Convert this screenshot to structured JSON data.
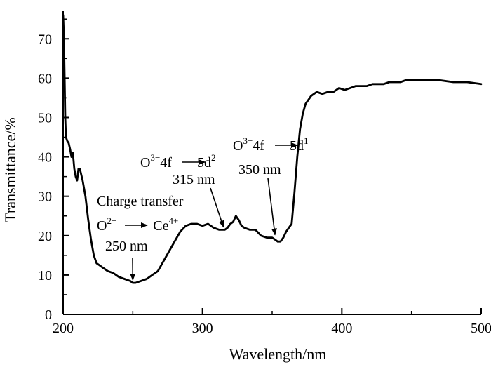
{
  "chart_data": {
    "type": "line",
    "title": "",
    "xlabel": "Wavelength/nm",
    "ylabel": "Transmittance/%",
    "xlim": [
      200,
      500
    ],
    "ylim": [
      0,
      77
    ],
    "x_ticks": [
      "200",
      "300",
      "400",
      "500"
    ],
    "y_ticks": [
      "0",
      "10",
      "20",
      "30",
      "40",
      "50",
      "60",
      "70"
    ],
    "grid": false,
    "series": [
      {
        "x": [
          200,
          200.5,
          201,
          201.5,
          202,
          203,
          204,
          205,
          206,
          207,
          208,
          209,
          210,
          211,
          212,
          214,
          216,
          218,
          220,
          222,
          224,
          226,
          228,
          232,
          236,
          240,
          244,
          248,
          250,
          252,
          256,
          260,
          264,
          268,
          272,
          276,
          280,
          284,
          288,
          292,
          296,
          300,
          304,
          308,
          312,
          316,
          318,
          320,
          322,
          324,
          326,
          328,
          330,
          334,
          338,
          342,
          346,
          350,
          352,
          354,
          356,
          358,
          360,
          362,
          364,
          366,
          368,
          370,
          372,
          374,
          376,
          378,
          382,
          386,
          390,
          394,
          398,
          402,
          406,
          410,
          414,
          418,
          422,
          426,
          430,
          434,
          438,
          442,
          446,
          450,
          455,
          460,
          470,
          480,
          490,
          500
        ],
        "y": [
          76,
          71,
          61,
          50,
          45,
          44,
          43.5,
          42,
          40,
          41,
          37,
          35,
          34,
          37,
          37,
          34,
          30,
          24,
          19,
          15,
          13,
          12.5,
          12,
          11,
          10.5,
          9.5,
          9,
          8.5,
          8,
          8,
          8.5,
          9,
          10,
          11,
          13.5,
          16,
          18.5,
          21,
          22.5,
          23,
          23,
          22.5,
          23,
          22,
          21.5,
          21.5,
          22,
          23,
          23.5,
          25,
          24,
          22.5,
          22,
          21.5,
          21.5,
          20,
          19.5,
          19.5,
          19,
          18.5,
          18.5,
          19.5,
          21,
          22,
          23,
          31,
          40,
          47,
          51,
          53.5,
          54.5,
          55.5,
          56.5,
          56,
          56.5,
          56.5,
          57.5,
          57,
          57.5,
          58,
          58,
          58,
          58.5,
          58.5,
          58.5,
          59,
          59,
          59,
          59.5,
          59.5,
          59.5,
          59.5,
          59.5,
          59,
          59,
          58.5
        ]
      }
    ],
    "annotations": [
      {
        "lines": [
          "Charge transfer"
        ],
        "formula": {
          "left": "O",
          "left_sup": "2−",
          "right": "Ce",
          "right_sup": "4+"
        },
        "value": "250 nm",
        "arrow_to": [
          250,
          8
        ]
      },
      {
        "formula": {
          "left": "O",
          "left_sup": "3−",
          "left_rest": "4f",
          "right": "5d",
          "right_sup": "2"
        },
        "value": "315 nm",
        "arrow_to": [
          315,
          21.5
        ]
      },
      {
        "formula": {
          "left": "O",
          "left_sup": "3−",
          "left_rest": "4f",
          "right": "5d",
          "right_sup": "1"
        },
        "value": "350 nm",
        "arrow_to": [
          352,
          19.5
        ]
      }
    ]
  }
}
